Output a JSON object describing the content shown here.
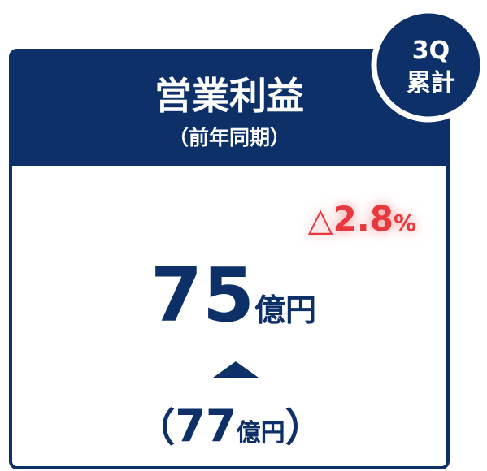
{
  "header": {
    "title": "営業利益",
    "subtitle": "（前年同期）"
  },
  "badge": {
    "line1": "3Q",
    "line2": "累計"
  },
  "change": {
    "symbol": "△",
    "value": 2.8,
    "unit": "%"
  },
  "current": {
    "value": 75,
    "unit": "億円"
  },
  "previous": {
    "open": "（",
    "value": 77,
    "unit": "億円",
    "close": "）"
  }
}
